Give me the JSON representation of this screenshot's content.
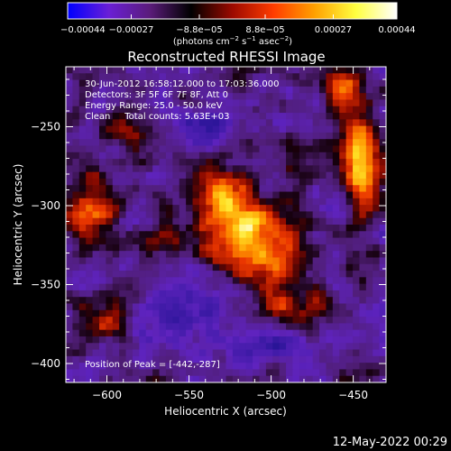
{
  "chart_data": {
    "type": "heatmap",
    "title": "Reconstructed RHESSI Image",
    "xlabel": "Heliocentric X (arcsec)",
    "ylabel": "Heliocentric Y (arcsec)",
    "xlim": [
      -625,
      -430
    ],
    "ylim": [
      -412,
      -212
    ],
    "x_ticks": [
      -600,
      -550,
      -500,
      -450
    ],
    "x_tick_labels": [
      "−600",
      "−550",
      "−500",
      "−450"
    ],
    "y_ticks": [
      -400,
      -350,
      -300,
      -250
    ],
    "y_tick_labels": [
      "−400",
      "−350",
      "−300",
      "−250"
    ],
    "colorbar": {
      "range": [
        -0.00044,
        0.00044
      ],
      "colors": [
        "#0000ff",
        "#6a1fd6",
        "#5a1c7a",
        "#000000",
        "#9c0a00",
        "#ff3c00",
        "#ffa000",
        "#ffff40",
        "#ffffff"
      ],
      "ticks": [
        -0.00044,
        -0.00027,
        -8.8e-05,
        8.8e-05,
        0.00027,
        0.00044
      ],
      "tick_labels": [
        "−0.00044",
        "−0.00027",
        "−8.8e−05",
        "8.8e−05",
        "0.00027",
        "0.00044"
      ],
      "units_label_parts": [
        "(photons cm",
        "−2",
        " s",
        "−1",
        " asec",
        "−2",
        ")"
      ]
    },
    "annotations": [
      "30-Jun-2012 16:58:12.000 to 17:03:36.000",
      "Detectors: 3F 5F 6F 7F 8F, Att 0",
      "Energy Range: 25.0 - 50.0 keV",
      "Clean     Total counts: 5.63E+03"
    ],
    "peak_label": "Position of Peak = [-442,-287]",
    "peak_position": [
      -442,
      -287
    ],
    "grid": false
  },
  "footer": {
    "timestamp": "12-May-2022 00:29"
  }
}
